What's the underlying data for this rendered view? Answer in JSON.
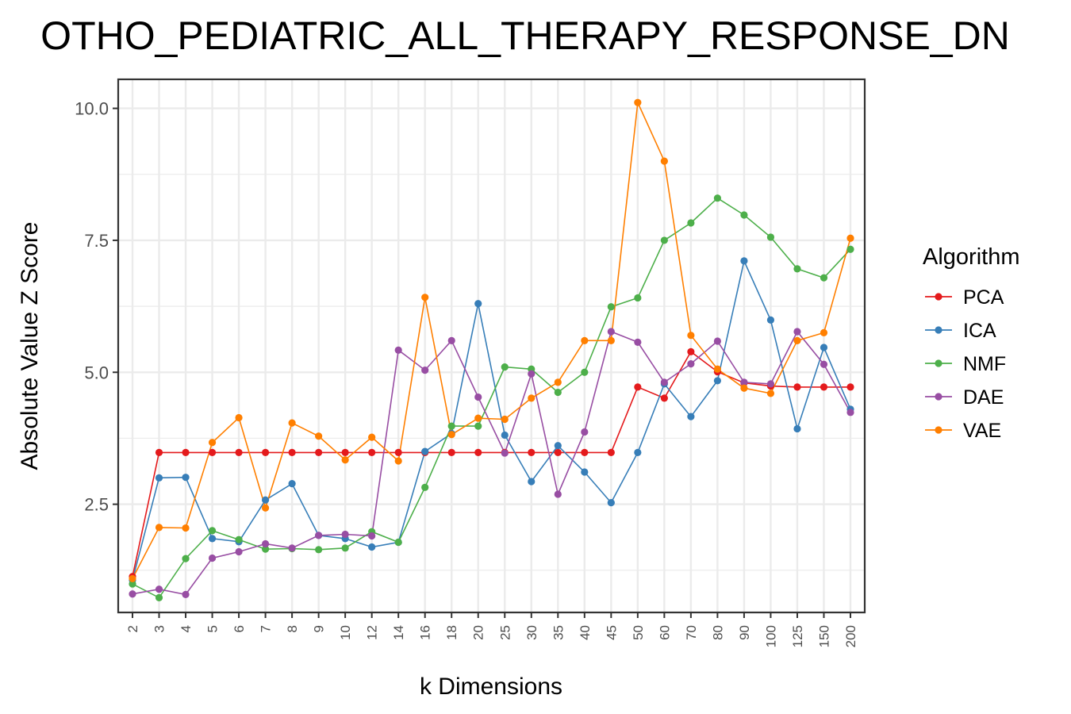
{
  "chart_data": {
    "type": "line",
    "title": "OTHO_PEDIATRIC_ALL_THERAPY_RESPONSE_DN",
    "xlabel": "k Dimensions",
    "ylabel": "Absolute Value Z Score",
    "categories": [
      "2",
      "3",
      "4",
      "5",
      "6",
      "7",
      "8",
      "9",
      "10",
      "12",
      "14",
      "16",
      "18",
      "20",
      "25",
      "30",
      "35",
      "40",
      "45",
      "50",
      "60",
      "70",
      "80",
      "90",
      "100",
      "125",
      "150",
      "200"
    ],
    "yticks": [
      "2.5",
      "5.0",
      "7.5",
      "10.0"
    ],
    "ylim": [
      0.45,
      10.55
    ],
    "grid": true,
    "legend": {
      "title": "Algorithm",
      "position": "right"
    },
    "series": [
      {
        "name": "PCA",
        "color": "#E41A1C",
        "values": [
          1.13,
          3.48,
          3.48,
          3.48,
          3.48,
          3.48,
          3.48,
          3.48,
          3.48,
          3.48,
          3.48,
          3.48,
          3.48,
          3.48,
          3.48,
          3.48,
          3.48,
          3.48,
          3.48,
          4.72,
          4.51,
          5.39,
          5.01,
          4.8,
          4.74,
          4.72,
          4.72,
          4.72
        ]
      },
      {
        "name": "ICA",
        "color": "#377EB8",
        "values": [
          1.06,
          3.0,
          3.01,
          1.85,
          1.79,
          2.58,
          2.89,
          1.91,
          1.85,
          1.69,
          1.78,
          3.5,
          3.84,
          6.3,
          3.81,
          2.93,
          3.61,
          3.11,
          2.53,
          3.48,
          4.78,
          4.16,
          4.84,
          7.11,
          5.99,
          3.93,
          5.47,
          4.3
        ]
      },
      {
        "name": "NMF",
        "color": "#4DAF4A",
        "values": [
          0.99,
          0.73,
          1.47,
          2.0,
          1.83,
          1.65,
          1.66,
          1.64,
          1.67,
          1.98,
          1.78,
          2.82,
          3.98,
          3.98,
          5.1,
          5.06,
          4.62,
          5.0,
          6.24,
          6.41,
          7.5,
          7.83,
          8.3,
          7.98,
          7.56,
          6.96,
          6.79,
          7.33
        ]
      },
      {
        "name": "DAE",
        "color": "#984EA3",
        "values": [
          0.8,
          0.89,
          0.79,
          1.48,
          1.6,
          1.75,
          1.67,
          1.91,
          1.93,
          1.9,
          5.42,
          5.04,
          5.6,
          4.53,
          3.47,
          4.97,
          2.69,
          3.87,
          5.77,
          5.57,
          4.81,
          5.16,
          5.59,
          4.81,
          4.78,
          5.77,
          5.15,
          4.24
        ]
      },
      {
        "name": "VAE",
        "color": "#FF7F00",
        "values": [
          1.09,
          2.06,
          2.05,
          3.67,
          4.14,
          2.43,
          4.04,
          3.79,
          3.34,
          3.77,
          3.32,
          6.42,
          3.82,
          4.13,
          4.11,
          4.51,
          4.81,
          5.6,
          5.6,
          10.11,
          9.0,
          5.7,
          5.06,
          4.7,
          4.6,
          5.6,
          5.75,
          7.54
        ]
      }
    ]
  }
}
